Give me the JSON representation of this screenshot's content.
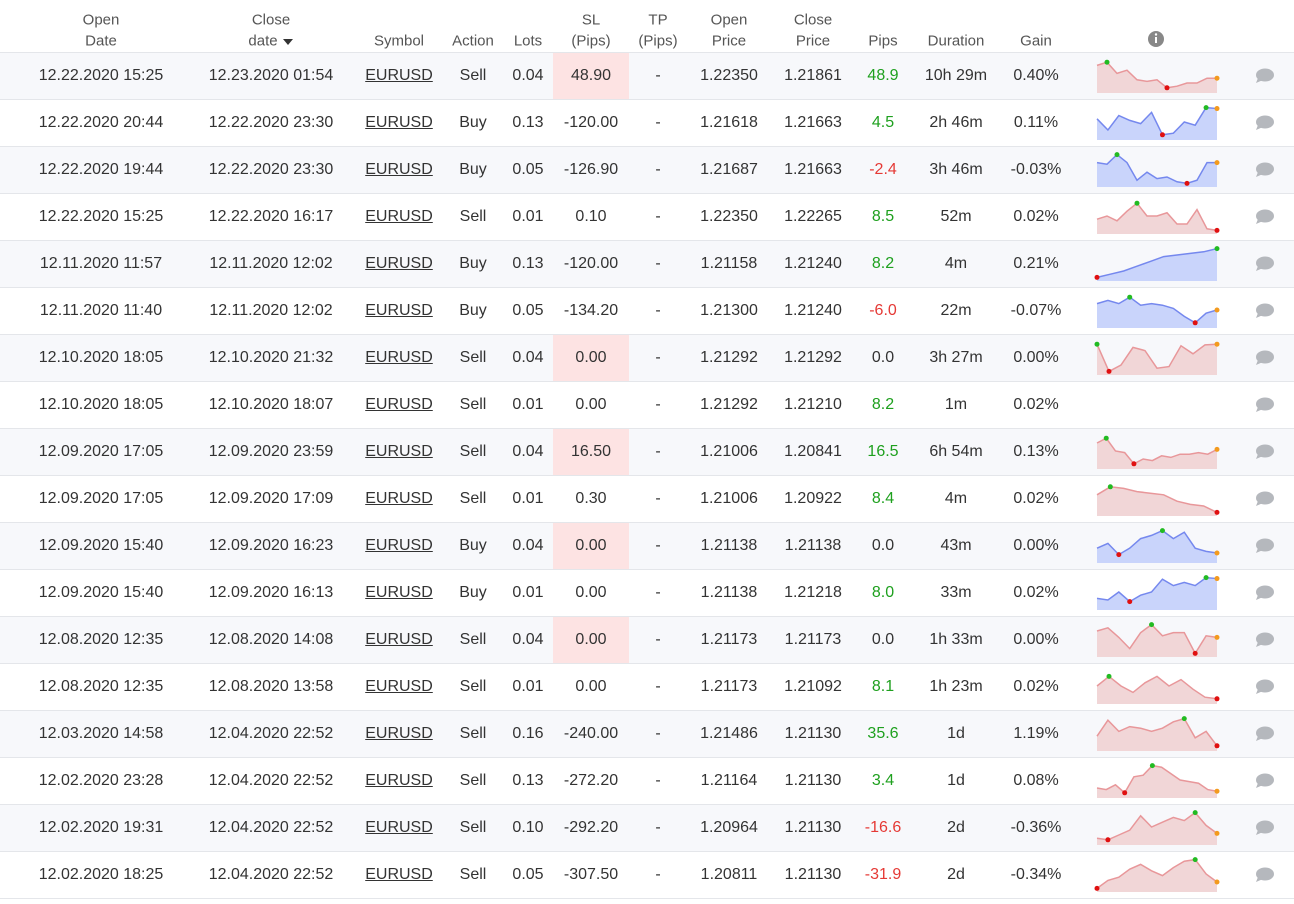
{
  "table": {
    "headers": [
      [
        "Open",
        "Date"
      ],
      [
        "Close",
        "date"
      ],
      [
        "Symbol"
      ],
      [
        "Action"
      ],
      [
        "Lots"
      ],
      [
        "SL",
        "(Pips)"
      ],
      [
        "TP",
        "(Pips)"
      ],
      [
        "Open",
        "Price"
      ],
      [
        "Close",
        "Price"
      ],
      [
        "Pips"
      ],
      [
        "Duration"
      ],
      [
        "Gain"
      ]
    ],
    "rows": [
      [
        "12.22.2020 15:25",
        "12.23.2020 01:54",
        "EURUSD",
        "Sell",
        "0.04",
        "48.90",
        "-",
        "1.22350",
        "1.21861",
        "48.9",
        "10h 29m",
        "0.40%"
      ],
      [
        "12.22.2020 20:44",
        "12.22.2020 23:30",
        "EURUSD",
        "Buy",
        "0.13",
        "-120.00",
        "-",
        "1.21618",
        "1.21663",
        "4.5",
        "2h 46m",
        "0.11%"
      ],
      [
        "12.22.2020 19:44",
        "12.22.2020 23:30",
        "EURUSD",
        "Buy",
        "0.05",
        "-126.90",
        "-",
        "1.21687",
        "1.21663",
        "-2.4",
        "3h 46m",
        "-0.03%"
      ],
      [
        "12.22.2020 15:25",
        "12.22.2020 16:17",
        "EURUSD",
        "Sell",
        "0.01",
        "0.10",
        "-",
        "1.22350",
        "1.22265",
        "8.5",
        "52m",
        "0.02%"
      ],
      [
        "12.11.2020 11:57",
        "12.11.2020 12:02",
        "EURUSD",
        "Buy",
        "0.13",
        "-120.00",
        "-",
        "1.21158",
        "1.21240",
        "8.2",
        "4m",
        "0.21%"
      ],
      [
        "12.11.2020 11:40",
        "12.11.2020 12:02",
        "EURUSD",
        "Buy",
        "0.05",
        "-134.20",
        "-",
        "1.21300",
        "1.21240",
        "-6.0",
        "22m",
        "-0.07%"
      ],
      [
        "12.10.2020 18:05",
        "12.10.2020 21:32",
        "EURUSD",
        "Sell",
        "0.04",
        "0.00",
        "-",
        "1.21292",
        "1.21292",
        "0.0",
        "3h 27m",
        "0.00%"
      ],
      [
        "12.10.2020 18:05",
        "12.10.2020 18:07",
        "EURUSD",
        "Sell",
        "0.01",
        "0.00",
        "-",
        "1.21292",
        "1.21210",
        "8.2",
        "1m",
        "0.02%"
      ],
      [
        "12.09.2020 17:05",
        "12.09.2020 23:59",
        "EURUSD",
        "Sell",
        "0.04",
        "16.50",
        "-",
        "1.21006",
        "1.20841",
        "16.5",
        "6h 54m",
        "0.13%"
      ],
      [
        "12.09.2020 17:05",
        "12.09.2020 17:09",
        "EURUSD",
        "Sell",
        "0.01",
        "0.30",
        "-",
        "1.21006",
        "1.20922",
        "8.4",
        "4m",
        "0.02%"
      ],
      [
        "12.09.2020 15:40",
        "12.09.2020 16:23",
        "EURUSD",
        "Buy",
        "0.04",
        "0.00",
        "-",
        "1.21138",
        "1.21138",
        "0.0",
        "43m",
        "0.00%"
      ],
      [
        "12.09.2020 15:40",
        "12.09.2020 16:13",
        "EURUSD",
        "Buy",
        "0.01",
        "0.00",
        "-",
        "1.21138",
        "1.21218",
        "8.0",
        "33m",
        "0.02%"
      ],
      [
        "12.08.2020 12:35",
        "12.08.2020 14:08",
        "EURUSD",
        "Sell",
        "0.04",
        "0.00",
        "-",
        "1.21173",
        "1.21173",
        "0.0",
        "1h 33m",
        "0.00%"
      ],
      [
        "12.08.2020 12:35",
        "12.08.2020 13:58",
        "EURUSD",
        "Sell",
        "0.01",
        "0.00",
        "-",
        "1.21173",
        "1.21092",
        "8.1",
        "1h 23m",
        "0.02%"
      ],
      [
        "12.03.2020 14:58",
        "12.04.2020 22:52",
        "EURUSD",
        "Sell",
        "0.16",
        "-240.00",
        "-",
        "1.21486",
        "1.21130",
        "35.6",
        "1d",
        "1.19%"
      ],
      [
        "12.02.2020 23:28",
        "12.04.2020 22:52",
        "EURUSD",
        "Sell",
        "0.13",
        "-272.20",
        "-",
        "1.21164",
        "1.21130",
        "3.4",
        "1d",
        "0.08%"
      ],
      [
        "12.02.2020 19:31",
        "12.04.2020 22:52",
        "EURUSD",
        "Sell",
        "0.10",
        "-292.20",
        "-",
        "1.20964",
        "1.21130",
        "-16.6",
        "2d",
        "-0.36%"
      ],
      [
        "12.02.2020 18:25",
        "12.04.2020 22:52",
        "EURUSD",
        "Sell",
        "0.05",
        "-307.50",
        "-",
        "1.20811",
        "1.21130",
        "-31.9",
        "2d",
        "-0.34%"
      ]
    ],
    "sl_highlight": [
      true,
      false,
      false,
      false,
      false,
      false,
      true,
      false,
      true,
      false,
      true,
      false,
      true,
      false,
      false,
      false,
      false,
      false
    ]
  }
}
